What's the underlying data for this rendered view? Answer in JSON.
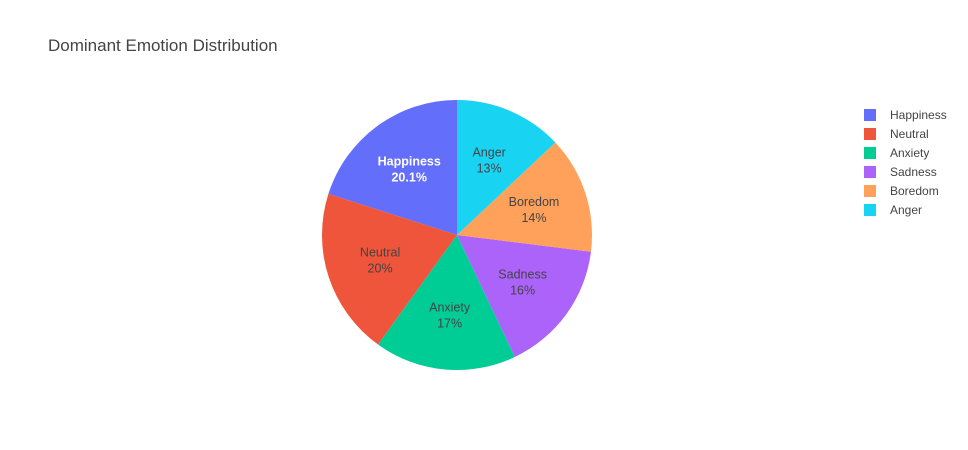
{
  "chart_data": {
    "type": "pie",
    "title": "Dominant Emotion Distribution",
    "categories": [
      "Happiness",
      "Neutral",
      "Anxiety",
      "Sadness",
      "Boredom",
      "Anger"
    ],
    "percent_labels": [
      "20.1%",
      "20%",
      "17%",
      "16%",
      "14%",
      "13%"
    ],
    "values": [
      20.1,
      20.0,
      17.0,
      16.0,
      14.0,
      13.0
    ],
    "colors": [
      "#636efa",
      "#EF553B",
      "#00cc96",
      "#ab63fa",
      "#FFA15A",
      "#19d3f3"
    ],
    "label_colors": [
      "#ffffff",
      "#444444",
      "#444444",
      "#444444",
      "#444444",
      "#444444"
    ],
    "direction": "counterclockwise",
    "start_angle": "top",
    "legend_position": "top-right"
  }
}
